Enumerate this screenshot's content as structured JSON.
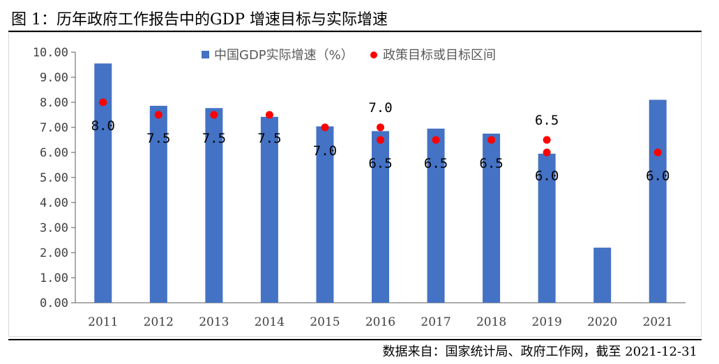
{
  "header": {
    "title": "图 1：历年政府工作报告中的GDP 增速目标与实际增速"
  },
  "footer": {
    "source": "数据来自：国家统计局、政府工作网，截至 2021-12-31"
  },
  "colors": {
    "bar": "#4472C4",
    "target": "#FF0000",
    "axis": "#595959",
    "grid": "#d9d9d9"
  },
  "chart_data": {
    "type": "bar",
    "title": "图 1：历年政府工作报告中的GDP 增速目标与实际增速",
    "categories": [
      "2011",
      "2012",
      "2013",
      "2014",
      "2015",
      "2016",
      "2017",
      "2018",
      "2019",
      "2020",
      "2021"
    ],
    "series": [
      {
        "name": "中国GDP实际增速（%）",
        "type": "bar",
        "values": [
          9.55,
          7.86,
          7.77,
          7.42,
          7.04,
          6.85,
          6.95,
          6.75,
          5.95,
          2.2,
          8.1
        ]
      },
      {
        "name": "政策目标或目标区间",
        "type": "scatter",
        "points": [
          {
            "category": "2011",
            "value": 8.0,
            "label": "8.0"
          },
          {
            "category": "2012",
            "value": 7.5,
            "label": "7.5"
          },
          {
            "category": "2013",
            "value": 7.5,
            "label": "7.5"
          },
          {
            "category": "2014",
            "value": 7.5,
            "label": "7.5"
          },
          {
            "category": "2015",
            "value": 7.0,
            "label": "7.0"
          },
          {
            "category": "2016",
            "value": 7.0,
            "label": "7.0"
          },
          {
            "category": "2016",
            "value": 6.5,
            "label": "6.5"
          },
          {
            "category": "2017",
            "value": 6.5,
            "label": "6.5"
          },
          {
            "category": "2018",
            "value": 6.5,
            "label": "6.5"
          },
          {
            "category": "2019",
            "value": 6.5,
            "label": "6.5"
          },
          {
            "category": "2019",
            "value": 6.0,
            "label": "6.0"
          },
          {
            "category": "2021",
            "value": 6.0,
            "label": "6.0"
          }
        ]
      }
    ],
    "yticks": [
      "0.00",
      "1.00",
      "2.00",
      "3.00",
      "4.00",
      "5.00",
      "6.00",
      "7.00",
      "8.00",
      "9.00",
      "10.00"
    ],
    "ylim": [
      0,
      10
    ],
    "xlabel": "",
    "ylabel": "",
    "legend": [
      "中国GDP实际增速（%）",
      "政策目标或目标区间"
    ]
  }
}
